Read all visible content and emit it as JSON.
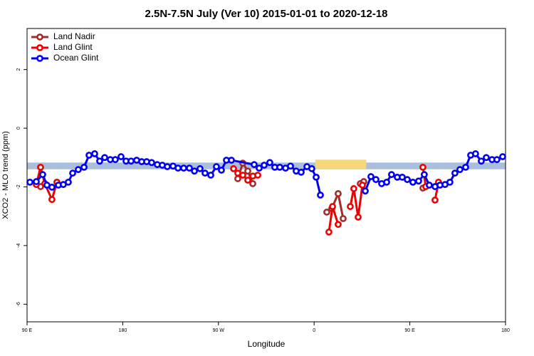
{
  "chart_data": {
    "type": "line",
    "title": "2.5N-7.5N July (Ver 10)   2015-01-01 to 2020-12-18",
    "x_label": "Longitude",
    "y_label": "XCO2 - MLO trend (ppm)",
    "xlim": [
      90,
      540
    ],
    "ylim": [
      -6.6,
      3.4
    ],
    "xticks": [
      {
        "value": 90,
        "label": "90 E"
      },
      {
        "value": 180,
        "label": "180"
      },
      {
        "value": 270,
        "label": "90 W"
      },
      {
        "value": 360,
        "label": "0"
      },
      {
        "value": 450,
        "label": "90 E"
      },
      {
        "value": 540,
        "label": "180"
      }
    ],
    "yticks": [
      -6,
      -4,
      -2,
      0,
      2
    ],
    "legend": "top-left",
    "band": {
      "ylim": [
        -1.4,
        -1.17
      ],
      "color": "#a9bfdc"
    },
    "highlight": {
      "xlim": [
        361,
        409
      ],
      "color": "#f6d77c"
    },
    "series": [
      {
        "name": "Land Nadir",
        "color": "#a52a2a",
        "x": [
          102.7,
          null,
          288.2,
          292.9,
          297.6,
          302.3,
          null,
          371.9,
          376.6,
          382.6,
          387.3,
          null,
          403.4,
          406.7,
          null,
          462.3
        ],
        "values": [
          -1.99,
          null,
          -1.72,
          -1.19,
          -1.46,
          -1.89,
          null,
          -2.86,
          -2.74,
          -2.23,
          -3.08,
          null,
          -1.89,
          -1.82,
          null,
          -2.04
        ]
      },
      {
        "name": "Land Glint",
        "color": "#ee0000",
        "x": [
          98.7,
          102.7,
          106.7,
          113.4,
          118.1,
          null,
          284.2,
          288.2,
          292.9,
          297.6,
          302.3,
          307.0,
          null,
          373.9,
          377.3,
          382.6,
          null,
          394.0,
          397.3,
          401.4,
          405.4,
          null,
          462.3,
          465.0,
          null,
          473.7,
          477.0
        ],
        "values": [
          -1.92,
          -1.33,
          -1.89,
          -2.43,
          -1.84,
          null,
          -1.38,
          -1.53,
          -1.6,
          -1.77,
          -1.63,
          -1.6,
          null,
          -3.54,
          -2.67,
          -3.28,
          null,
          -2.67,
          -2.06,
          -3.03,
          -1.94,
          null,
          -1.33,
          -1.99,
          null,
          -2.45,
          -1.84
        ]
      },
      {
        "name": "Ocean Glint",
        "color": "#0000ee",
        "x": [
          92.7,
          98.7,
          104.7,
          108.7,
          113.4,
          119.5,
          124.1,
          128.8,
          132.9,
          138.2,
          143.6,
          148.3,
          153.6,
          158.3,
          163.0,
          168.3,
          173.0,
          178.4,
          183.1,
          187.8,
          193.1,
          197.8,
          202.5,
          207.2,
          212.5,
          217.2,
          221.9,
          227.3,
          232.0,
          237.3,
          242.7,
          247.4,
          252.7,
          257.4,
          262.8,
          268.1,
          272.8,
          277.5,
          282.2,
          303.6,
          308.3,
          313.0,
          318.3,
          323.0,
          327.7,
          333.1,
          337.8,
          343.1,
          347.8,
          353.2,
          357.8,
          361.9,
          365.9,
          null,
          408.1,
          413.4,
          418.1,
          423.5,
          428.2,
          432.8,
          438.2,
          442.9,
          447.6,
          452.9,
          458.3,
          463.6,
          468.3,
          473.7,
          478.4,
          483.1,
          487.7,
          492.4,
          497.1,
          502.5,
          507.2,
          511.8,
          517.2,
          521.9,
          527.3,
          531.9,
          537.3
        ],
        "values": [
          -1.84,
          -1.82,
          -1.58,
          -1.94,
          -2.01,
          -1.94,
          -1.92,
          -1.84,
          -1.53,
          -1.41,
          -1.33,
          -0.92,
          -0.87,
          -1.12,
          -1.0,
          -1.07,
          -1.07,
          -0.97,
          -1.12,
          -1.12,
          -1.09,
          -1.14,
          -1.14,
          -1.17,
          -1.24,
          -1.26,
          -1.31,
          -1.29,
          -1.36,
          -1.36,
          -1.36,
          -1.46,
          -1.38,
          -1.53,
          -1.6,
          -1.31,
          -1.43,
          -1.09,
          -1.09,
          -1.24,
          -1.36,
          -1.26,
          -1.17,
          -1.33,
          -1.33,
          -1.36,
          -1.29,
          -1.46,
          -1.5,
          -1.31,
          -1.38,
          -1.67,
          -2.28,
          null,
          -2.14,
          -1.65,
          -1.75,
          -1.89,
          -1.84,
          -1.58,
          -1.67,
          -1.67,
          -1.75,
          -1.84,
          -1.8,
          -1.58,
          -1.94,
          -1.99,
          -1.94,
          -1.92,
          -1.84,
          -1.53,
          -1.41,
          -1.33,
          -0.92,
          -0.87,
          -1.12,
          -1.0,
          -1.07,
          -1.07,
          -0.97
        ]
      }
    ]
  }
}
